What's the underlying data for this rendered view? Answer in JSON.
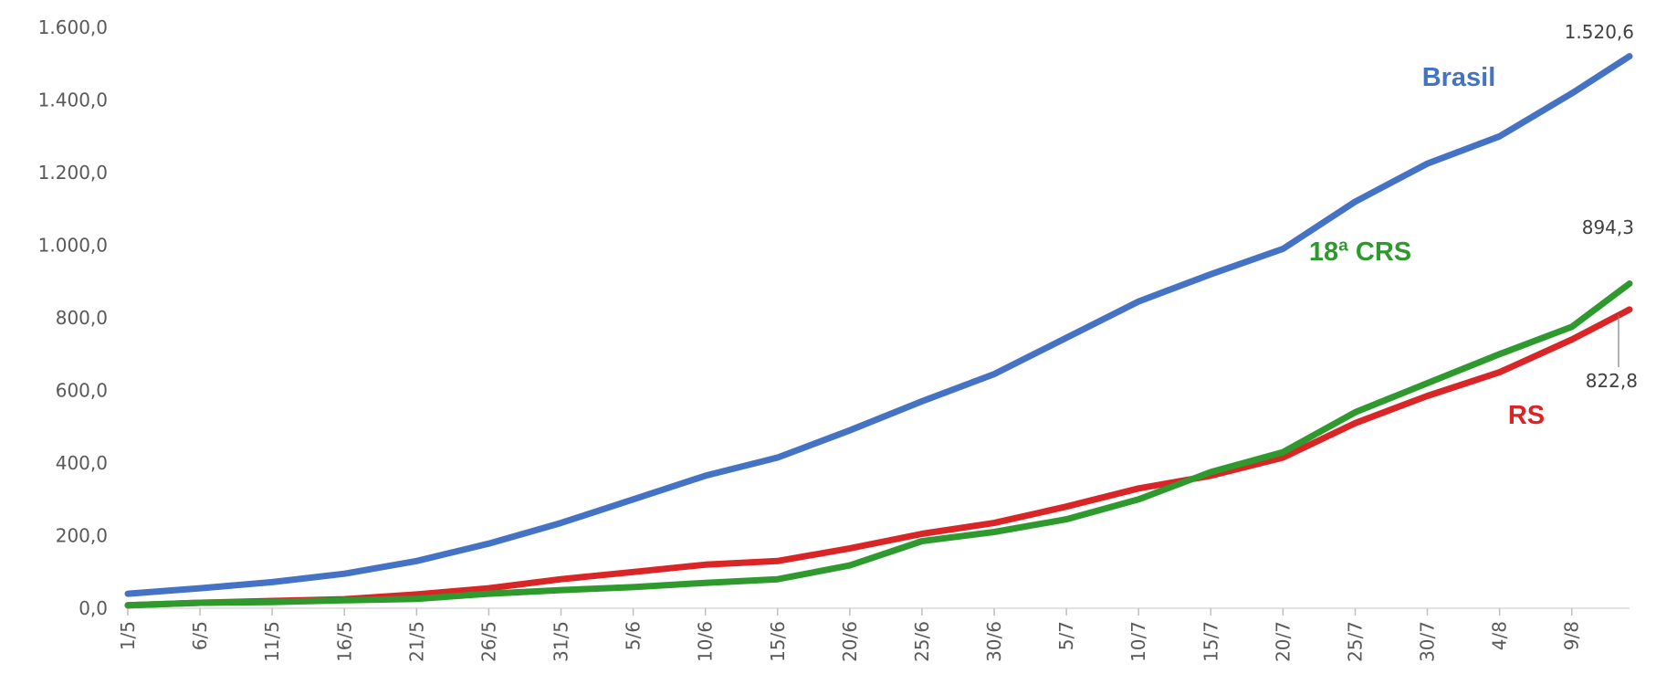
{
  "chart_data": {
    "type": "line",
    "title": "",
    "xlabel": "",
    "ylabel": "",
    "ylim": [
      0,
      1600
    ],
    "y_ticks": [
      "0,0",
      "200,0",
      "400,0",
      "600,0",
      "800,0",
      "1.000,0",
      "1.200,0",
      "1.400,0",
      "1.600,0"
    ],
    "y_tick_values": [
      0,
      200,
      400,
      600,
      800,
      1000,
      1200,
      1400,
      1600
    ],
    "grid": false,
    "x_start": "1/5",
    "x_end": "13/8",
    "x_tick_labels": [
      {
        "label": "1/5",
        "index": 0
      },
      {
        "label": "6/5",
        "index": 5
      },
      {
        "label": "11/5",
        "index": 10
      },
      {
        "label": "16/5",
        "index": 15
      },
      {
        "label": "21/5",
        "index": 20
      },
      {
        "label": "26/5",
        "index": 25
      },
      {
        "label": "31/5",
        "index": 30
      },
      {
        "label": "5/6",
        "index": 35
      },
      {
        "label": "10/6",
        "index": 40
      },
      {
        "label": "15/6",
        "index": 45
      },
      {
        "label": "20/6",
        "index": 50
      },
      {
        "label": "25/6",
        "index": 55
      },
      {
        "label": "30/6",
        "index": 60
      },
      {
        "label": "5/7",
        "index": 65
      },
      {
        "label": "10/7",
        "index": 70
      },
      {
        "label": "15/7",
        "index": 75
      },
      {
        "label": "20/7",
        "index": 80
      },
      {
        "label": "25/7",
        "index": 85
      },
      {
        "label": "30/7",
        "index": 90
      },
      {
        "label": "4/8",
        "index": 95
      },
      {
        "label": "9/8",
        "index": 100
      }
    ],
    "series": [
      {
        "name": "Brasil",
        "color": "#4472C4",
        "end_label": "1.520,6",
        "points": [
          [
            0,
            40
          ],
          [
            5,
            55
          ],
          [
            10,
            72
          ],
          [
            15,
            95
          ],
          [
            20,
            130
          ],
          [
            25,
            178
          ],
          [
            30,
            235
          ],
          [
            35,
            300
          ],
          [
            40,
            365
          ],
          [
            45,
            415
          ],
          [
            50,
            490
          ],
          [
            55,
            570
          ],
          [
            60,
            645
          ],
          [
            65,
            745
          ],
          [
            70,
            845
          ],
          [
            75,
            920
          ],
          [
            80,
            990
          ],
          [
            85,
            1120
          ],
          [
            90,
            1225
          ],
          [
            95,
            1300
          ],
          [
            100,
            1418
          ],
          [
            104,
            1520.6
          ]
        ]
      },
      {
        "name": "18ª CRS",
        "color": "#2E9A2E",
        "end_label": "894,3",
        "points": [
          [
            0,
            8
          ],
          [
            5,
            15
          ],
          [
            10,
            17
          ],
          [
            15,
            22
          ],
          [
            20,
            26
          ],
          [
            25,
            40
          ],
          [
            30,
            50
          ],
          [
            35,
            58
          ],
          [
            40,
            70
          ],
          [
            45,
            80
          ],
          [
            50,
            118
          ],
          [
            55,
            185
          ],
          [
            60,
            210
          ],
          [
            65,
            245
          ],
          [
            70,
            300
          ],
          [
            75,
            375
          ],
          [
            80,
            430
          ],
          [
            85,
            540
          ],
          [
            90,
            620
          ],
          [
            95,
            700
          ],
          [
            100,
            775
          ],
          [
            104,
            894.3
          ]
        ]
      },
      {
        "name": "RS",
        "color": "#D92525",
        "end_label": "822,8",
        "points": [
          [
            0,
            8
          ],
          [
            5,
            15
          ],
          [
            10,
            20
          ],
          [
            15,
            25
          ],
          [
            20,
            38
          ],
          [
            25,
            55
          ],
          [
            30,
            80
          ],
          [
            35,
            100
          ],
          [
            40,
            120
          ],
          [
            45,
            130
          ],
          [
            50,
            165
          ],
          [
            55,
            205
          ],
          [
            60,
            235
          ],
          [
            65,
            280
          ],
          [
            70,
            330
          ],
          [
            75,
            365
          ],
          [
            80,
            415
          ],
          [
            85,
            510
          ],
          [
            90,
            585
          ],
          [
            95,
            650
          ],
          [
            100,
            740
          ],
          [
            104,
            822.8
          ]
        ]
      }
    ]
  }
}
